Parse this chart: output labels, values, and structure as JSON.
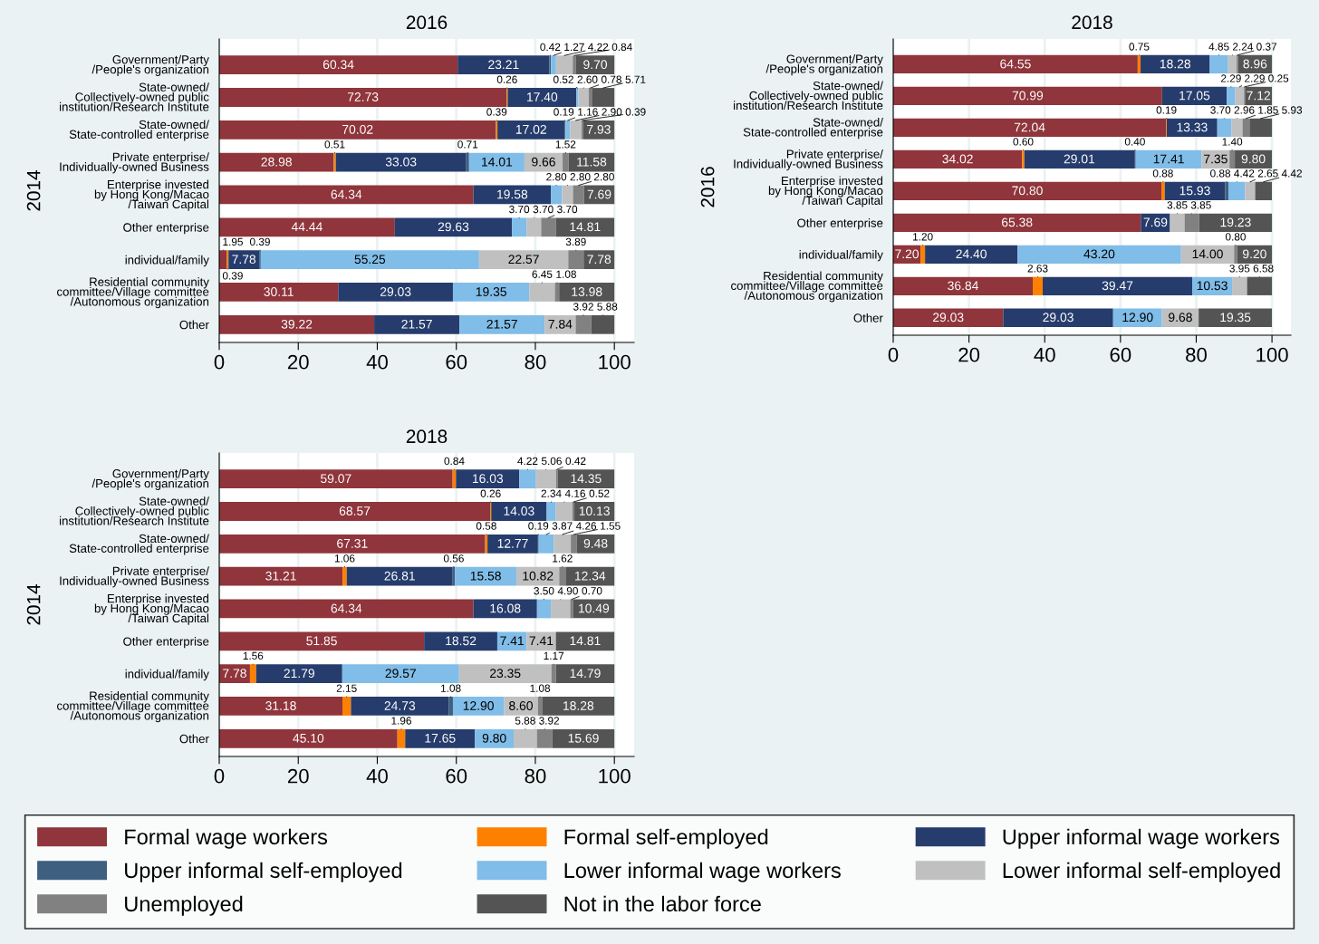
{
  "chart_data": [
    {
      "type": "bar",
      "orientation": "horizontal",
      "stacked": true,
      "title": "2016",
      "ylabel": "2014",
      "grid": "x",
      "legend": "bottom",
      "categories": [
        "Government/Party\n/People's organization",
        "State-owned/\nCollectively-owned public\ninstitution/Research Institute",
        "State-owned/\nState-controlled enterprise",
        "Private enterprise/\nIndividually-owned Business",
        "Enterprise invested\nby Hong Kong/Macao\n/Taiwan Capital",
        "Other enterprise",
        "individual/family",
        "Residential community\ncommittee/Village committee\n/Autonomous organization",
        "Other"
      ],
      "xlim": [
        0,
        105
      ],
      "xticks": [
        0,
        20,
        40,
        60,
        80,
        100
      ],
      "series": [
        {
          "name": "Formal wage workers",
          "color": "#8f353b",
          "values": [
            60.34,
            72.73,
            70.02,
            28.98,
            64.34,
            44.44,
            1.95,
            30.11,
            39.22
          ],
          "value_labels": [
            "60.34",
            "72.73",
            "70.02",
            "28.98",
            "64.34",
            "44.44",
            "1.95",
            "30.11",
            "39.22"
          ]
        },
        {
          "name": "Formal self-employed",
          "color": "#fe8000",
          "values": [
            null,
            0.26,
            0.39,
            0.51,
            null,
            null,
            0.39,
            null,
            null
          ],
          "value_labels": [
            null,
            "0.26",
            "0.39",
            "0.51",
            null,
            null,
            "0.39",
            null,
            null
          ]
        },
        {
          "name": "Upper informal wage workers",
          "color": "#263c6c",
          "values": [
            23.21,
            17.4,
            17.02,
            33.03,
            19.58,
            29.63,
            7.78,
            29.03,
            21.57
          ],
          "value_labels": [
            "23.21",
            "17.40",
            "17.02",
            "33.03",
            "19.58",
            "29.63",
            "7.78",
            "29.03",
            "21.57"
          ]
        },
        {
          "name": "Upper informal self-employed",
          "color": "#3e5f80",
          "values": [
            0.42,
            null,
            0.19,
            0.71,
            null,
            null,
            0.39,
            null,
            null
          ],
          "value_labels": [
            "0.42",
            null,
            "0.19",
            "0.71",
            null,
            null,
            "0.39",
            null,
            null
          ]
        },
        {
          "name": "Lower informal wage workers",
          "color": "#80bde8",
          "values": [
            1.27,
            0.52,
            1.16,
            14.01,
            2.8,
            3.7,
            55.25,
            19.35,
            21.57
          ],
          "value_labels": [
            "1.27",
            "0.52",
            "1.16",
            "14.01",
            "2.80",
            "3.70",
            "55.25",
            "19.35",
            "21.57"
          ]
        },
        {
          "name": "Lower informal self-employed",
          "color": "#c0c0c0",
          "values": [
            4.22,
            2.6,
            2.9,
            9.66,
            2.8,
            3.7,
            22.57,
            6.45,
            7.84
          ],
          "value_labels": [
            "4.22",
            "2.60",
            "2.90",
            "9.66",
            "2.80",
            "3.70",
            "22.57",
            "6.45",
            "7.84"
          ]
        },
        {
          "name": "Unemployed",
          "color": "#818181",
          "values": [
            0.84,
            0.78,
            0.39,
            1.52,
            2.8,
            3.7,
            3.89,
            1.08,
            3.92
          ],
          "value_labels": [
            "0.84",
            "0.78",
            "0.39",
            "1.52",
            "2.80",
            "3.70",
            "3.89",
            "1.08",
            "3.92"
          ]
        },
        {
          "name": "Not in the labor force",
          "color": "#545454",
          "values": [
            9.7,
            5.71,
            7.93,
            11.58,
            7.69,
            14.81,
            7.78,
            13.98,
            5.88
          ],
          "value_labels": [
            "9.70",
            "5.71",
            "7.93",
            "11.58",
            "7.69",
            "14.81",
            "7.78",
            "13.98",
            "5.88"
          ]
        }
      ]
    },
    {
      "type": "bar",
      "orientation": "horizontal",
      "stacked": true,
      "title": "2018",
      "ylabel": "2016",
      "grid": "x",
      "legend": "bottom",
      "categories": [
        "Government/Party\n/People's organization",
        "State-owned/\nCollectively-owned public\ninstitution/Research Institute",
        "State-owned/\nState-controlled enterprise",
        "Private enterprise/\nIndividually-owned Business",
        "Enterprise invested\nby Hong Kong/Macao\n/Taiwan Capital",
        "Other enterprise",
        "individual/family",
        "Residential community\ncommittee/Village committee\n/Autonomous organization",
        "Other"
      ],
      "xlim": [
        0,
        105
      ],
      "xticks": [
        0,
        20,
        40,
        60,
        80,
        100
      ],
      "series": [
        {
          "name": "Formal wage workers",
          "color": "#8f353b",
          "values": [
            64.55,
            70.99,
            72.04,
            34.02,
            70.8,
            65.38,
            7.2,
            36.84,
            29.03
          ],
          "value_labels": [
            "64.55",
            "70.99",
            "72.04",
            "34.02",
            "70.80",
            "65.38",
            "7.20",
            "36.84",
            "29.03"
          ]
        },
        {
          "name": "Formal self-employed",
          "color": "#fe8000",
          "values": [
            0.75,
            null,
            0.19,
            0.6,
            0.88,
            null,
            1.2,
            2.63,
            null
          ],
          "value_labels": [
            "0.75",
            null,
            "0.19",
            "0.60",
            "0.88",
            null,
            "1.20",
            "2.63",
            null
          ]
        },
        {
          "name": "Upper informal wage workers",
          "color": "#263c6c",
          "values": [
            18.28,
            17.05,
            13.33,
            29.01,
            15.93,
            7.69,
            24.4,
            39.47,
            29.03
          ],
          "value_labels": [
            "18.28",
            "17.05",
            "13.33",
            "29.01",
            "15.93",
            "7.69",
            "24.40",
            "39.47",
            "29.03"
          ]
        },
        {
          "name": "Upper informal self-employed",
          "color": "#3e5f80",
          "values": [
            null,
            null,
            null,
            0.4,
            0.88,
            null,
            null,
            null,
            null
          ],
          "value_labels": [
            null,
            null,
            null,
            "0.40",
            "0.88",
            null,
            null,
            null,
            null
          ]
        },
        {
          "name": "Lower informal wage workers",
          "color": "#80bde8",
          "values": [
            4.85,
            2.29,
            3.7,
            17.41,
            4.42,
            null,
            43.2,
            10.53,
            12.9
          ],
          "value_labels": [
            "4.85",
            "2.29",
            "3.70",
            "17.41",
            "4.42",
            null,
            "43.20",
            "10.53",
            "12.90"
          ]
        },
        {
          "name": "Lower informal self-employed",
          "color": "#c0c0c0",
          "values": [
            2.24,
            2.29,
            2.96,
            7.35,
            2.65,
            3.85,
            14.0,
            3.95,
            9.68
          ],
          "value_labels": [
            "2.24",
            "2.29",
            "2.96",
            "7.35",
            "2.65",
            "3.85",
            "14.00",
            "3.95",
            "9.68"
          ]
        },
        {
          "name": "Unemployed",
          "color": "#818181",
          "values": [
            0.37,
            0.25,
            1.85,
            1.4,
            null,
            3.85,
            0.8,
            null,
            null
          ],
          "value_labels": [
            "0.37",
            "0.25",
            "1.85",
            "1.40",
            null,
            "3.85",
            "0.80",
            null,
            null
          ]
        },
        {
          "name": "Not in the labor force",
          "color": "#545454",
          "values": [
            8.96,
            7.12,
            5.93,
            9.8,
            4.42,
            19.23,
            9.2,
            6.58,
            19.35
          ],
          "value_labels": [
            "8.96",
            "7.12",
            "5.93",
            "9.80",
            "4.42",
            "19.23",
            "9.20",
            "6.58",
            "19.35"
          ]
        }
      ]
    },
    {
      "type": "bar",
      "orientation": "horizontal",
      "stacked": true,
      "title": "2018",
      "ylabel": "2014",
      "grid": "x",
      "legend": "bottom",
      "categories": [
        "Government/Party\n/People's organization",
        "State-owned/\nCollectively-owned public\ninstitution/Research Institute",
        "State-owned/\nState-controlled enterprise",
        "Private enterprise/\nIndividually-owned Business",
        "Enterprise invested\nby Hong Kong/Macao\n/Taiwan Capital",
        "Other enterprise",
        "individual/family",
        "Residential community\ncommittee/Village committee\n/Autonomous organization",
        "Other"
      ],
      "xlim": [
        0,
        105
      ],
      "xticks": [
        0,
        20,
        40,
        60,
        80,
        100
      ],
      "series": [
        {
          "name": "Formal wage workers",
          "color": "#8f353b",
          "values": [
            59.07,
            68.57,
            67.31,
            31.21,
            64.34,
            51.85,
            7.78,
            31.18,
            45.1
          ],
          "value_labels": [
            "59.07",
            "68.57",
            "67.31",
            "31.21",
            "64.34",
            "51.85",
            "7.78",
            "31.18",
            "45.10"
          ]
        },
        {
          "name": "Formal self-employed",
          "color": "#fe8000",
          "values": [
            0.84,
            0.26,
            0.58,
            1.06,
            null,
            null,
            1.56,
            2.15,
            1.96
          ],
          "value_labels": [
            "0.84",
            "0.26",
            "0.58",
            "1.06",
            null,
            null,
            "1.56",
            "2.15",
            "1.96"
          ]
        },
        {
          "name": "Upper informal wage workers",
          "color": "#263c6c",
          "values": [
            16.03,
            14.03,
            12.77,
            26.81,
            16.08,
            18.52,
            21.79,
            24.73,
            17.65
          ],
          "value_labels": [
            "16.03",
            "14.03",
            "12.77",
            "26.81",
            "16.08",
            "18.52",
            "21.79",
            "24.73",
            "17.65"
          ]
        },
        {
          "name": "Upper informal self-employed",
          "color": "#3e5f80",
          "values": [
            null,
            null,
            0.19,
            0.56,
            null,
            null,
            null,
            1.08,
            null
          ],
          "value_labels": [
            null,
            null,
            "0.19",
            "0.56",
            null,
            null,
            null,
            "1.08",
            null
          ]
        },
        {
          "name": "Lower informal wage workers",
          "color": "#80bde8",
          "values": [
            4.22,
            2.34,
            3.87,
            15.58,
            3.5,
            7.41,
            29.57,
            12.9,
            9.8
          ],
          "value_labels": [
            "4.22",
            "2.34",
            "3.87",
            "15.58",
            "3.50",
            "7.41",
            "29.57",
            "12.90",
            "9.80"
          ]
        },
        {
          "name": "Lower informal self-employed",
          "color": "#c0c0c0",
          "values": [
            5.06,
            4.16,
            4.26,
            10.82,
            4.9,
            7.41,
            23.35,
            8.6,
            5.88
          ],
          "value_labels": [
            "5.06",
            "4.16",
            "4.26",
            "10.82",
            "4.90",
            "7.41",
            "23.35",
            "8.60",
            "5.88"
          ]
        },
        {
          "name": "Unemployed",
          "color": "#818181",
          "values": [
            0.42,
            0.52,
            1.55,
            1.62,
            0.7,
            null,
            1.17,
            1.08,
            3.92
          ],
          "value_labels": [
            "0.42",
            "0.52",
            "1.55",
            "1.62",
            "0.70",
            null,
            "1.17",
            "1.08",
            "3.92"
          ]
        },
        {
          "name": "Not in the labor force",
          "color": "#545454",
          "values": [
            14.35,
            10.13,
            9.48,
            12.34,
            10.49,
            14.81,
            14.79,
            18.28,
            15.69
          ],
          "value_labels": [
            "14.35",
            "10.13",
            "9.48",
            "12.34",
            "10.49",
            "14.81",
            "14.79",
            "18.28",
            "15.69"
          ]
        }
      ]
    }
  ]
}
